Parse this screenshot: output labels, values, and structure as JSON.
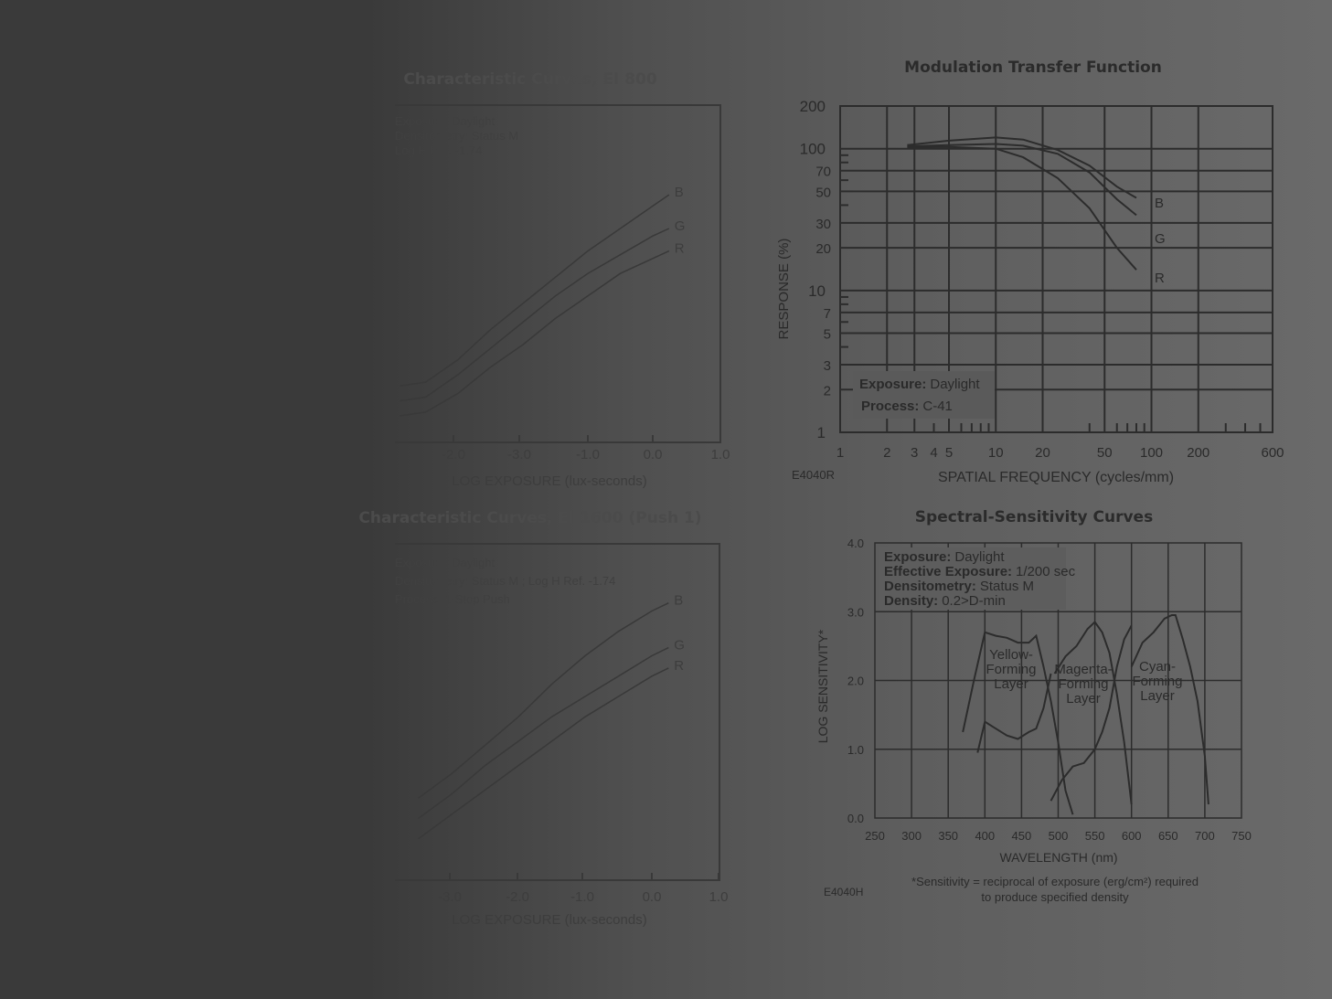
{
  "chart_data": [
    {
      "type": "line",
      "title": "Characteristic Curves, EI 800",
      "notes": [
        "Exposure: Daylight",
        "Densitometry: Status M",
        "Log H Ref. -1.74"
      ],
      "xlabel": "LOG EXPOSURE (lux-seconds)",
      "x_ticks": [
        "-2.0",
        "-3.0",
        "-1.0",
        "0.0",
        "1.0"
      ],
      "series": [
        {
          "name": "B",
          "x": [
            -3.9,
            -3.5,
            -3.0,
            -2.5,
            -2.0,
            -1.5,
            -1.0,
            -0.5,
            0.0,
            0.25
          ],
          "y": [
            0.4,
            0.45,
            0.75,
            1.15,
            1.5,
            1.85,
            2.2,
            2.5,
            2.8,
            2.95
          ]
        },
        {
          "name": "G",
          "x": [
            -3.9,
            -3.5,
            -3.0,
            -2.5,
            -2.0,
            -1.5,
            -1.0,
            -0.5,
            0.0,
            0.25
          ],
          "y": [
            0.2,
            0.25,
            0.55,
            0.9,
            1.25,
            1.6,
            1.9,
            2.15,
            2.4,
            2.5
          ]
        },
        {
          "name": "R",
          "x": [
            -3.9,
            -3.5,
            -3.0,
            -2.5,
            -2.0,
            -1.5,
            -1.0,
            -0.5,
            0.0,
            0.25
          ],
          "y": [
            0.0,
            0.05,
            0.3,
            0.65,
            0.95,
            1.3,
            1.6,
            1.9,
            2.1,
            2.2
          ]
        }
      ]
    },
    {
      "type": "line",
      "title": "Modulation Transfer Function",
      "xlabel": "SPATIAL FREQUENCY (cycles/mm)",
      "ylabel": "RESPONSE (%)",
      "x_scale": "log",
      "y_scale": "log",
      "xlim": [
        1,
        600
      ],
      "ylim": [
        1,
        200
      ],
      "x_ticks": [
        "1",
        "2",
        "3",
        "4",
        "5",
        "10",
        "20",
        "50",
        "100",
        "200",
        "600"
      ],
      "y_ticks": [
        "200",
        "100",
        "70",
        "50",
        "30",
        "20",
        "10",
        "7",
        "5",
        "3",
        "2",
        "1"
      ],
      "annotations": [
        {
          "label": "Exposure:",
          "value": "Daylight"
        },
        {
          "label": "Process:",
          "value": "C-41"
        }
      ],
      "code": "E4040R",
      "series": [
        {
          "name": "B",
          "x": [
            2.7,
            5,
            10,
            15,
            25,
            40,
            60,
            80
          ],
          "y": [
            106,
            114,
            120,
            116,
            98,
            76,
            54,
            45
          ]
        },
        {
          "name": "G",
          "x": [
            2.7,
            5,
            10,
            15,
            25,
            40,
            60,
            80
          ],
          "y": [
            104,
            106,
            108,
            105,
            92,
            68,
            44,
            34
          ]
        },
        {
          "name": "R",
          "x": [
            2.7,
            5,
            10,
            15,
            25,
            40,
            60,
            80
          ],
          "y": [
            102,
            103,
            100,
            87,
            62,
            38,
            20,
            14
          ]
        }
      ]
    },
    {
      "type": "line",
      "title": "Characteristic Curves, EI 1600 (Push 1)",
      "notes": [
        "Exposure: Daylight",
        "Densitometry: Status M ; Log H Ref. -1.74",
        "Process: 1-Stop Push"
      ],
      "xlabel": "LOG EXPOSURE (lux-seconds)",
      "x_ticks": [
        "-3.0",
        "-2.0",
        "-1.0",
        "0.0",
        "1.0"
      ],
      "series": [
        {
          "name": "B",
          "x": [
            -4.5,
            -4.0,
            -3.5,
            -3.0,
            -2.5,
            -2.0,
            -1.5,
            -1.0,
            -0.5,
            0.0,
            0.25
          ],
          "y": [
            0.55,
            0.6,
            0.75,
            1.05,
            1.4,
            1.75,
            2.15,
            2.5,
            2.8,
            3.05,
            3.15
          ]
        },
        {
          "name": "G",
          "x": [
            -4.5,
            -4.0,
            -3.5,
            -3.0,
            -2.5,
            -2.0,
            -1.5,
            -1.0,
            -0.5,
            0.0,
            0.25
          ],
          "y": [
            0.3,
            0.35,
            0.5,
            0.8,
            1.15,
            1.45,
            1.75,
            2.0,
            2.25,
            2.5,
            2.6
          ]
        },
        {
          "name": "R",
          "x": [
            -4.5,
            -4.0,
            -3.5,
            -3.0,
            -2.5,
            -2.0,
            -1.5,
            -1.0,
            -0.5,
            0.0,
            0.25
          ],
          "y": [
            0.05,
            0.1,
            0.25,
            0.55,
            0.85,
            1.15,
            1.45,
            1.75,
            2.0,
            2.25,
            2.35
          ]
        }
      ]
    },
    {
      "type": "line",
      "title": "Spectral-Sensitivity Curves",
      "xlabel": "WAVELENGTH (nm)",
      "ylabel": "LOG SENSITIVITY*",
      "xlim": [
        250,
        750
      ],
      "ylim": [
        0.0,
        4.0
      ],
      "x_ticks": [
        "250",
        "300",
        "350",
        "400",
        "450",
        "500",
        "550",
        "600",
        "650",
        "700",
        "750"
      ],
      "y_ticks": [
        "0.0",
        "1.0",
        "2.0",
        "3.0",
        "4.0"
      ],
      "annotations": [
        {
          "label": "Exposure:",
          "value": "Daylight"
        },
        {
          "label": "Effective Exposure:",
          "value": "1/200 sec"
        },
        {
          "label": "Densitometry:",
          "value": "Status M"
        },
        {
          "label": "Density:",
          "value": "0.2>D-min"
        }
      ],
      "layer_labels": [
        [
          "Yellow-",
          "Forming",
          "Layer"
        ],
        [
          "Magenta-",
          "Forming",
          "Layer"
        ],
        [
          "Cyan-",
          "Forming",
          "Layer"
        ]
      ],
      "footnote_lines": [
        "*Sensitivity = reciprocal of exposure (erg/cm²) required",
        "to produce specified density"
      ],
      "code": "E4040H",
      "series": [
        {
          "name": "Yellow-Forming Layer",
          "x": [
            370,
            385,
            400,
            415,
            430,
            445,
            460,
            470,
            480,
            490,
            500,
            510,
            520
          ],
          "y": [
            1.25,
            2.0,
            2.7,
            2.65,
            2.62,
            2.55,
            2.55,
            2.65,
            2.2,
            1.7,
            1.1,
            0.4,
            0.05
          ]
        },
        {
          "name": "Yellow-Forming Layer (lower)",
          "x": [
            390,
            400,
            415,
            430,
            445,
            460,
            470,
            480,
            490
          ],
          "y": [
            0.95,
            1.4,
            1.3,
            1.2,
            1.15,
            1.25,
            1.3,
            1.6,
            2.1
          ]
        },
        {
          "name": "Magenta-Forming Layer",
          "x": [
            490,
            505,
            520,
            535,
            550,
            560,
            570,
            580,
            590,
            600
          ],
          "y": [
            0.25,
            0.55,
            0.75,
            0.8,
            1.0,
            1.25,
            1.6,
            2.2,
            2.6,
            2.8
          ]
        },
        {
          "name": "Magenta-Forming Layer (upper)",
          "x": [
            495,
            510,
            525,
            540,
            550,
            560,
            570,
            580,
            590,
            600
          ],
          "y": [
            2.1,
            2.35,
            2.5,
            2.75,
            2.85,
            2.7,
            2.4,
            1.8,
            1.1,
            0.2
          ]
        },
        {
          "name": "Cyan-Forming Layer",
          "x": [
            600,
            615,
            630,
            645,
            655,
            660,
            670,
            680,
            690,
            700,
            705
          ],
          "y": [
            2.2,
            2.55,
            2.7,
            2.9,
            2.95,
            2.95,
            2.6,
            2.2,
            1.7,
            0.9,
            0.2
          ]
        }
      ]
    }
  ]
}
